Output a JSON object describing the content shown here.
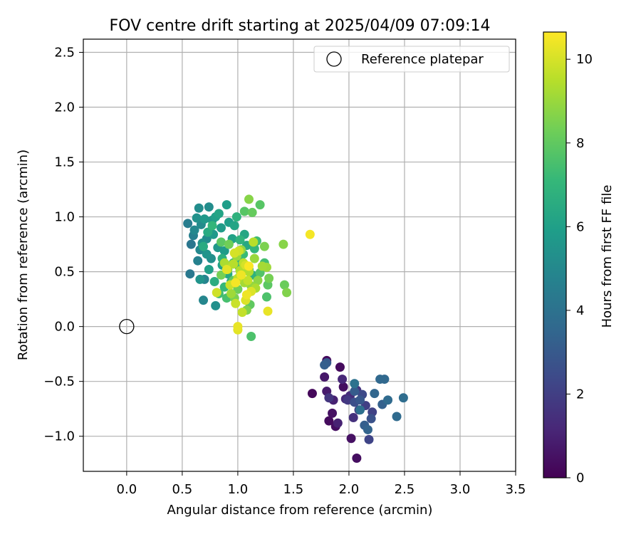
{
  "chart_data": {
    "type": "scatter",
    "title": "FOV centre drift starting at 2025/04/09 07:09:14",
    "xlabel": "Angular distance from reference (arcmin)",
    "ylabel": "Rotation from reference (arcmin)",
    "xlim": [
      -0.39,
      3.5
    ],
    "ylim": [
      -1.32,
      2.62
    ],
    "x_ticks": [
      0.0,
      0.5,
      1.0,
      1.5,
      2.0,
      2.5,
      3.0,
      3.5
    ],
    "x_tick_labels": [
      "0.0",
      "0.5",
      "1.0",
      "1.5",
      "2.0",
      "2.5",
      "3.0",
      "3.5"
    ],
    "y_ticks": [
      -1.0,
      -0.5,
      0.0,
      0.5,
      1.0,
      1.5,
      2.0,
      2.5
    ],
    "y_tick_labels": [
      "−1.0",
      "−0.5",
      "0.0",
      "0.5",
      "1.0",
      "1.5",
      "2.0",
      "2.5"
    ],
    "grid": true,
    "legend": {
      "position": "top-right",
      "label": "Reference platepar"
    },
    "reference_point": {
      "x": 0.0,
      "y": 0.0
    },
    "colorbar": {
      "label": "Hours from first FF file",
      "range": [
        0,
        10.65
      ],
      "ticks": [
        0,
        2,
        4,
        6,
        8,
        10
      ],
      "tick_labels": [
        "0",
        "2",
        "4",
        "6",
        "8",
        "10"
      ],
      "colormap": "viridis",
      "stops": [
        "#440154",
        "#482878",
        "#3e4989",
        "#31688e",
        "#26828e",
        "#1f9e89",
        "#35b779",
        "#6ece58",
        "#b5de2b",
        "#fde725"
      ]
    },
    "points": [
      {
        "x": 1.67,
        "y": -0.61,
        "t": 0.2
      },
      {
        "x": 1.8,
        "y": -0.31,
        "t": 0.3
      },
      {
        "x": 1.82,
        "y": -0.86,
        "t": 0.3
      },
      {
        "x": 1.88,
        "y": -0.91,
        "t": 0.4
      },
      {
        "x": 1.92,
        "y": -0.37,
        "t": 0.3
      },
      {
        "x": 2.07,
        "y": -1.2,
        "t": 0.4
      },
      {
        "x": 1.95,
        "y": -0.55,
        "t": 0.4
      },
      {
        "x": 2.02,
        "y": -1.02,
        "t": 0.5
      },
      {
        "x": 1.85,
        "y": -0.79,
        "t": 0.5
      },
      {
        "x": 1.78,
        "y": -0.46,
        "t": 0.7
      },
      {
        "x": 1.8,
        "y": -0.59,
        "t": 0.8
      },
      {
        "x": 1.86,
        "y": -0.67,
        "t": 1.0
      },
      {
        "x": 1.9,
        "y": -0.88,
        "t": 1.0
      },
      {
        "x": 1.94,
        "y": -0.48,
        "t": 1.2
      },
      {
        "x": 1.97,
        "y": -0.66,
        "t": 1.3
      },
      {
        "x": 2.01,
        "y": -0.63,
        "t": 1.4
      },
      {
        "x": 2.04,
        "y": -0.83,
        "t": 1.5
      },
      {
        "x": 2.07,
        "y": -0.58,
        "t": 1.6
      },
      {
        "x": 1.82,
        "y": -0.65,
        "t": 1.7
      },
      {
        "x": 1.99,
        "y": -0.67,
        "t": 1.8
      },
      {
        "x": 2.09,
        "y": -0.76,
        "t": 1.9
      },
      {
        "x": 2.15,
        "y": -0.72,
        "t": 2.0
      },
      {
        "x": 2.21,
        "y": -0.78,
        "t": 2.1
      },
      {
        "x": 2.18,
        "y": -1.03,
        "t": 2.2
      },
      {
        "x": 2.12,
        "y": -0.62,
        "t": 2.4
      },
      {
        "x": 2.05,
        "y": -0.69,
        "t": 2.6
      },
      {
        "x": 2.2,
        "y": -0.84,
        "t": 2.7
      },
      {
        "x": 2.1,
        "y": -0.67,
        "t": 2.9
      },
      {
        "x": 1.8,
        "y": -0.33,
        "t": 3.0
      },
      {
        "x": 2.05,
        "y": -0.59,
        "t": 3.1
      },
      {
        "x": 2.14,
        "y": -0.9,
        "t": 3.2
      },
      {
        "x": 2.3,
        "y": -0.71,
        "t": 3.3
      },
      {
        "x": 2.17,
        "y": -0.94,
        "t": 3.4
      },
      {
        "x": 2.23,
        "y": -0.61,
        "t": 3.5
      },
      {
        "x": 2.28,
        "y": -0.48,
        "t": 3.6
      },
      {
        "x": 2.32,
        "y": -0.48,
        "t": 3.6
      },
      {
        "x": 2.35,
        "y": -0.67,
        "t": 3.7
      },
      {
        "x": 2.43,
        "y": -0.82,
        "t": 3.7
      },
      {
        "x": 2.49,
        "y": -0.65,
        "t": 3.8
      },
      {
        "x": 2.1,
        "y": -0.76,
        "t": 3.9
      },
      {
        "x": 2.05,
        "y": -0.52,
        "t": 4.0
      },
      {
        "x": 1.78,
        "y": -0.35,
        "t": 3.2
      },
      {
        "x": 0.58,
        "y": 0.75,
        "t": 4.2
      },
      {
        "x": 0.57,
        "y": 0.48,
        "t": 4.3
      },
      {
        "x": 0.55,
        "y": 0.94,
        "t": 4.5
      },
      {
        "x": 0.6,
        "y": 0.83,
        "t": 4.6
      },
      {
        "x": 0.64,
        "y": 0.6,
        "t": 4.7
      },
      {
        "x": 0.7,
        "y": 0.43,
        "t": 4.8
      },
      {
        "x": 0.69,
        "y": 0.24,
        "t": 4.9
      },
      {
        "x": 0.66,
        "y": 0.7,
        "t": 5.0
      },
      {
        "x": 0.61,
        "y": 0.88,
        "t": 5.0
      },
      {
        "x": 0.67,
        "y": 0.93,
        "t": 5.1
      },
      {
        "x": 0.72,
        "y": 0.8,
        "t": 5.1
      },
      {
        "x": 0.65,
        "y": 1.08,
        "t": 5.2
      },
      {
        "x": 0.74,
        "y": 1.09,
        "t": 5.2
      },
      {
        "x": 0.8,
        "y": 0.19,
        "t": 5.3
      },
      {
        "x": 0.76,
        "y": 0.62,
        "t": 5.3
      },
      {
        "x": 0.63,
        "y": 0.99,
        "t": 5.4
      },
      {
        "x": 0.68,
        "y": 0.76,
        "t": 5.4
      },
      {
        "x": 0.72,
        "y": 0.66,
        "t": 5.5
      },
      {
        "x": 0.66,
        "y": 0.43,
        "t": 5.5
      },
      {
        "x": 0.77,
        "y": 0.97,
        "t": 5.6
      },
      {
        "x": 0.82,
        "y": 0.72,
        "t": 5.6
      },
      {
        "x": 0.7,
        "y": 0.98,
        "t": 5.7
      },
      {
        "x": 0.78,
        "y": 0.84,
        "t": 5.7
      },
      {
        "x": 0.85,
        "y": 0.9,
        "t": 5.8
      },
      {
        "x": 0.88,
        "y": 0.69,
        "t": 5.8
      },
      {
        "x": 0.9,
        "y": 1.11,
        "t": 5.9
      },
      {
        "x": 0.92,
        "y": 0.95,
        "t": 5.9
      },
      {
        "x": 0.8,
        "y": 1.0,
        "t": 6.0
      },
      {
        "x": 0.74,
        "y": 0.52,
        "t": 6.0
      },
      {
        "x": 0.86,
        "y": 0.56,
        "t": 6.1
      },
      {
        "x": 0.95,
        "y": 0.8,
        "t": 6.1
      },
      {
        "x": 0.83,
        "y": 1.03,
        "t": 6.2
      },
      {
        "x": 0.97,
        "y": 0.92,
        "t": 6.2
      },
      {
        "x": 1.0,
        "y": 0.62,
        "t": 6.3
      },
      {
        "x": 1.06,
        "y": 0.84,
        "t": 6.3
      },
      {
        "x": 0.91,
        "y": 0.48,
        "t": 6.4
      },
      {
        "x": 1.08,
        "y": 0.74,
        "t": 6.4
      },
      {
        "x": 0.73,
        "y": 0.86,
        "t": 6.5
      },
      {
        "x": 0.69,
        "y": 0.73,
        "t": 6.5
      },
      {
        "x": 0.94,
        "y": 0.41,
        "t": 6.6
      },
      {
        "x": 0.79,
        "y": 0.41,
        "t": 6.6
      },
      {
        "x": 0.86,
        "y": 0.62,
        "t": 6.7
      },
      {
        "x": 1.1,
        "y": 0.52,
        "t": 6.7
      },
      {
        "x": 1.13,
        "y": 0.47,
        "t": 6.8
      },
      {
        "x": 0.99,
        "y": 1.0,
        "t": 6.8
      },
      {
        "x": 1.02,
        "y": 0.79,
        "t": 6.9
      },
      {
        "x": 1.15,
        "y": 0.71,
        "t": 7.0
      },
      {
        "x": 0.77,
        "y": 0.92,
        "t": 7.0
      },
      {
        "x": 0.88,
        "y": 0.36,
        "t": 7.1
      },
      {
        "x": 0.96,
        "y": 0.58,
        "t": 7.2
      },
      {
        "x": 1.05,
        "y": 0.66,
        "t": 7.2
      },
      {
        "x": 1.17,
        "y": 0.78,
        "t": 7.3
      },
      {
        "x": 0.83,
        "y": 0.3,
        "t": 7.3
      },
      {
        "x": 1.24,
        "y": 0.58,
        "t": 7.4
      },
      {
        "x": 0.9,
        "y": 0.26,
        "t": 7.5
      },
      {
        "x": 1.01,
        "y": 0.55,
        "t": 7.5
      },
      {
        "x": 1.12,
        "y": -0.09,
        "t": 7.6
      },
      {
        "x": 1.26,
        "y": 0.27,
        "t": 7.6
      },
      {
        "x": 1.02,
        "y": 0.46,
        "t": 7.7
      },
      {
        "x": 1.2,
        "y": 0.49,
        "t": 7.7
      },
      {
        "x": 1.06,
        "y": 1.05,
        "t": 7.8
      },
      {
        "x": 1.2,
        "y": 1.11,
        "t": 7.8
      },
      {
        "x": 0.85,
        "y": 0.77,
        "t": 7.9
      },
      {
        "x": 1.27,
        "y": 0.38,
        "t": 7.9
      },
      {
        "x": 0.96,
        "y": 0.42,
        "t": 8.0
      },
      {
        "x": 1.11,
        "y": 0.2,
        "t": 8.0
      },
      {
        "x": 1.13,
        "y": 1.04,
        "t": 8.1
      },
      {
        "x": 1.42,
        "y": 0.38,
        "t": 8.2
      },
      {
        "x": 0.92,
        "y": 0.75,
        "t": 8.3
      },
      {
        "x": 1.0,
        "y": 0.34,
        "t": 8.3
      },
      {
        "x": 0.85,
        "y": 0.47,
        "t": 8.4
      },
      {
        "x": 1.28,
        "y": 0.44,
        "t": 8.4
      },
      {
        "x": 1.24,
        "y": 0.73,
        "t": 8.5
      },
      {
        "x": 0.97,
        "y": 0.26,
        "t": 8.5
      },
      {
        "x": 1.08,
        "y": 0.15,
        "t": 8.6
      },
      {
        "x": 1.44,
        "y": 0.31,
        "t": 8.6
      },
      {
        "x": 1.1,
        "y": 1.16,
        "t": 8.7
      },
      {
        "x": 1.41,
        "y": 0.75,
        "t": 8.7
      },
      {
        "x": 0.91,
        "y": 0.52,
        "t": 8.8
      },
      {
        "x": 1.18,
        "y": 0.42,
        "t": 8.8
      },
      {
        "x": 1.03,
        "y": 0.7,
        "t": 8.9
      },
      {
        "x": 1.12,
        "y": 0.37,
        "t": 8.9
      },
      {
        "x": 1.15,
        "y": 0.62,
        "t": 9.0
      },
      {
        "x": 0.99,
        "y": 0.64,
        "t": 9.0
      },
      {
        "x": 1.26,
        "y": 0.54,
        "t": 9.1
      },
      {
        "x": 0.94,
        "y": 0.3,
        "t": 9.1
      },
      {
        "x": 1.06,
        "y": 0.4,
        "t": 9.2
      },
      {
        "x": 1.22,
        "y": 0.55,
        "t": 9.2
      },
      {
        "x": 0.88,
        "y": 0.58,
        "t": 9.3
      },
      {
        "x": 1.16,
        "y": 0.35,
        "t": 9.3
      },
      {
        "x": 1.02,
        "y": 0.51,
        "t": 9.4
      },
      {
        "x": 1.1,
        "y": 0.5,
        "t": 9.4
      },
      {
        "x": 1.14,
        "y": 0.77,
        "t": 9.5
      },
      {
        "x": 0.96,
        "y": 0.57,
        "t": 9.5
      },
      {
        "x": 1.05,
        "y": 0.58,
        "t": 9.6
      },
      {
        "x": 1.0,
        "y": 0.44,
        "t": 9.6
      },
      {
        "x": 1.09,
        "y": 0.42,
        "t": 9.7
      },
      {
        "x": 1.04,
        "y": 0.13,
        "t": 9.7
      },
      {
        "x": 0.98,
        "y": 0.21,
        "t": 9.8
      },
      {
        "x": 0.93,
        "y": 0.38,
        "t": 9.8
      },
      {
        "x": 0.81,
        "y": 0.31,
        "t": 9.9
      },
      {
        "x": 1.01,
        "y": 0.69,
        "t": 9.9
      },
      {
        "x": 1.07,
        "y": 0.56,
        "t": 10.0
      },
      {
        "x": 0.97,
        "y": 0.67,
        "t": 10.0
      },
      {
        "x": 1.12,
        "y": 0.32,
        "t": 10.1
      },
      {
        "x": 1.07,
        "y": 0.24,
        "t": 10.1
      },
      {
        "x": 0.9,
        "y": 0.52,
        "t": 10.2
      },
      {
        "x": 1.0,
        "y": -0.03,
        "t": 10.2
      },
      {
        "x": 1.0,
        "y": 0.0,
        "t": 10.3
      },
      {
        "x": 1.27,
        "y": 0.14,
        "t": 10.3
      },
      {
        "x": 1.03,
        "y": 0.47,
        "t": 10.4
      },
      {
        "x": 1.08,
        "y": 0.29,
        "t": 10.4
      },
      {
        "x": 1.65,
        "y": 0.84,
        "t": 10.5
      },
      {
        "x": 0.98,
        "y": 0.4,
        "t": 10.5
      },
      {
        "x": 1.1,
        "y": 0.55,
        "t": 10.6
      }
    ]
  }
}
